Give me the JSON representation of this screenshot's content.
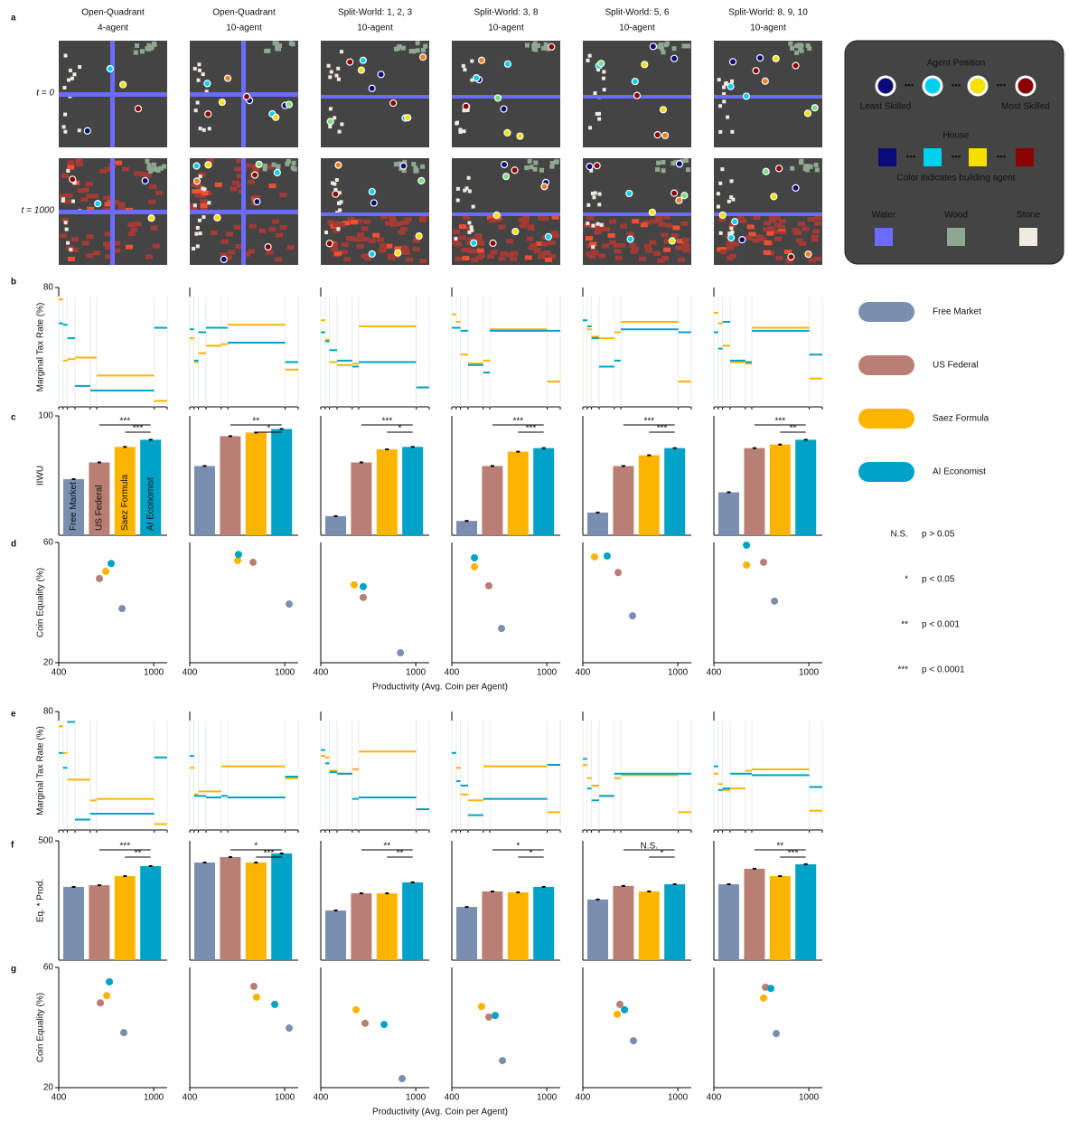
{
  "panel_letters": [
    "a",
    "b",
    "c",
    "d",
    "e",
    "f",
    "g"
  ],
  "column_titles": [
    [
      "Open-Quadrant",
      "4-agent"
    ],
    [
      "Open-Quadrant",
      "10-agent"
    ],
    [
      "Split-World: 1, 2, 3",
      "10-agent"
    ],
    [
      "Split-World: 3, 8",
      "10-agent"
    ],
    [
      "Split-World: 5, 6",
      "10-agent"
    ],
    [
      "Split-World: 8, 9, 10",
      "10-agent"
    ]
  ],
  "time_labels": [
    "t = 0",
    "t = 1000"
  ],
  "map_legend": {
    "agent_title": "Agent Position",
    "least": "Least Skilled",
    "most": "Most Skilled",
    "house_title": "House",
    "house_note": "Color indicates building agent",
    "resources": [
      "Water",
      "Wood",
      "Stone"
    ]
  },
  "legend": [
    {
      "name": "Free Market",
      "color": "#7a8fb0"
    },
    {
      "name": "US Federal",
      "color": "#b97f74"
    },
    {
      "name": "Saez Formula",
      "color": "#fbb400"
    },
    {
      "name": "AI Economist",
      "color": "#00a3c7"
    }
  ],
  "significance": [
    [
      "N.S.",
      "p > 0.05"
    ],
    [
      "*",
      "p < 0.05"
    ],
    [
      "**",
      "p < 0.001"
    ],
    [
      "***",
      "p < 0.0001"
    ]
  ],
  "xlabels": [
    "Productivity (Avg. Coin per Agent)",
    "Productivity (Avg. Coin per Agent)"
  ],
  "chart_data": [
    {
      "type": "step",
      "ylabel": "Marginal Tax Rate (%)",
      "ylim": [
        0,
        80
      ],
      "yticks": [
        80
      ],
      "xlim": [
        0,
        100
      ],
      "bracket_edges": [
        0,
        4,
        8,
        15,
        29,
        35,
        88,
        100
      ],
      "series": [
        {
          "color": "#fbb400",
          "values": [
            72,
            31,
            32,
            33,
            33,
            21,
            4
          ]
        },
        {
          "color": "#00a3c7",
          "values": [
            56,
            55,
            46,
            14,
            11,
            11,
            53
          ]
        }
      ]
    },
    {
      "type": "step",
      "ylim": [
        0,
        80
      ],
      "xlim": [
        0,
        100
      ],
      "bracket_edges": [
        0,
        4,
        8,
        15,
        29,
        35,
        88,
        100
      ],
      "series": [
        {
          "color": "#fbb400",
          "values": [
            46,
            30,
            36,
            41,
            42,
            55,
            25
          ]
        },
        {
          "color": "#00a3c7",
          "values": [
            52,
            31,
            50,
            53,
            53,
            43,
            30
          ]
        }
      ]
    },
    {
      "type": "step",
      "ylim": [
        0,
        80
      ],
      "xlim": [
        0,
        100
      ],
      "bracket_edges": [
        0,
        4,
        8,
        15,
        29,
        35,
        88,
        100
      ],
      "series": [
        {
          "color": "#fbb400",
          "values": [
            58,
            45,
            30,
            28,
            29,
            54,
            13
          ]
        },
        {
          "color": "#00a3c7",
          "values": [
            50,
            44,
            38,
            31,
            27,
            30,
            13
          ]
        }
      ]
    },
    {
      "type": "step",
      "ylim": [
        0,
        80
      ],
      "xlim": [
        0,
        100
      ],
      "bracket_edges": [
        0,
        4,
        8,
        15,
        29,
        35,
        88,
        100
      ],
      "series": [
        {
          "color": "#fbb400",
          "values": [
            62,
            57,
            35,
            29,
            31,
            52,
            17
          ]
        },
        {
          "color": "#00a3c7",
          "values": [
            53,
            53,
            51,
            28,
            23,
            51,
            51
          ]
        }
      ]
    },
    {
      "type": "step",
      "ylim": [
        0,
        80
      ],
      "xlim": [
        0,
        100
      ],
      "bracket_edges": [
        0,
        4,
        8,
        15,
        29,
        35,
        88,
        100
      ],
      "series": [
        {
          "color": "#fbb400",
          "values": [
            58,
            52,
            47,
            46,
            50,
            57,
            17
          ]
        },
        {
          "color": "#00a3c7",
          "values": [
            58,
            54,
            46,
            27,
            31,
            52,
            50
          ]
        }
      ]
    },
    {
      "type": "step",
      "ylim": [
        0,
        80
      ],
      "xlim": [
        0,
        100
      ],
      "bracket_edges": [
        0,
        4,
        8,
        15,
        29,
        35,
        88,
        100
      ],
      "series": [
        {
          "color": "#fbb400",
          "values": [
            63,
            56,
            41,
            30,
            29,
            53,
            19
          ]
        },
        {
          "color": "#00a3c7",
          "values": [
            50,
            39,
            57,
            31,
            30,
            51,
            35
          ]
        }
      ]
    },
    {
      "type": "bar",
      "ylabel": "IIWU",
      "ylim": [
        0,
        100
      ],
      "yticks": [
        100
      ],
      "categories": [
        "Free Market",
        "US Federal",
        "Saez Formula",
        "AI Economist"
      ],
      "values": [
        47,
        61,
        74,
        80
      ],
      "annotations": [
        "***",
        "***"
      ]
    },
    {
      "type": "bar",
      "ylim": [
        0,
        100
      ],
      "values": [
        58,
        83,
        86,
        89
      ],
      "annotations": [
        "**",
        "*"
      ]
    },
    {
      "type": "bar",
      "ylim": [
        0,
        100
      ],
      "values": [
        16,
        61,
        72,
        74
      ],
      "annotations": [
        "***",
        "*"
      ]
    },
    {
      "type": "bar",
      "ylim": [
        0,
        100
      ],
      "values": [
        12,
        58,
        70,
        73
      ],
      "annotations": [
        "***",
        "***"
      ]
    },
    {
      "type": "bar",
      "ylim": [
        0,
        100
      ],
      "values": [
        19,
        58,
        67,
        73
      ],
      "annotations": [
        "***",
        "***"
      ]
    },
    {
      "type": "bar",
      "ylim": [
        0,
        100
      ],
      "values": [
        36,
        73,
        76,
        80
      ],
      "annotations": [
        "***",
        "**"
      ]
    },
    {
      "type": "scatter",
      "ylabel": "Coin Equality (%)",
      "xlim": [
        400,
        1085
      ],
      "xticks": [
        400,
        1000
      ],
      "ylim": [
        20,
        60
      ],
      "yticks": [
        20,
        60
      ],
      "x": [
        800,
        657,
        697,
        731
      ],
      "y": [
        38,
        48,
        50.4,
        53
      ]
    },
    {
      "type": "scatter",
      "xlim": [
        400,
        1085
      ],
      "xticks": [
        400,
        1000
      ],
      "ylim": [
        20,
        60
      ],
      "x": [
        1028,
        800,
        703,
        708
      ],
      "y": [
        39.5,
        53.4,
        54,
        56
      ]
    },
    {
      "type": "scatter",
      "xlim": [
        400,
        1085
      ],
      "xticks": [
        400,
        1000
      ],
      "ylim": [
        20,
        60
      ],
      "x": [
        903,
        668,
        611,
        668
      ],
      "y": [
        23.3,
        41.7,
        45.9,
        45.3
      ]
    },
    {
      "type": "scatter",
      "xlim": [
        400,
        1085
      ],
      "xticks": [
        400,
        1000
      ],
      "ylim": [
        20,
        60
      ],
      "x": [
        714,
        634,
        543,
        543
      ],
      "y": [
        31.4,
        45.6,
        51.9,
        54.9
      ]
    },
    {
      "type": "scatter",
      "xlim": [
        400,
        1085
      ],
      "xticks": [
        400,
        1000
      ],
      "ylim": [
        20,
        60
      ],
      "x": [
        714,
        623,
        474,
        554
      ],
      "y": [
        35.6,
        50,
        55.2,
        55.5
      ]
    },
    {
      "type": "scatter",
      "xlim": [
        400,
        1085
      ],
      "xticks": [
        400,
        1000
      ],
      "ylim": [
        20,
        60
      ],
      "x": [
        783,
        714,
        606,
        606
      ],
      "y": [
        40.5,
        53.4,
        52.5,
        59.1
      ]
    },
    {
      "type": "step",
      "ylabel": "Marginal Tax Rate (%)",
      "ylim": [
        0,
        80
      ],
      "yticks": [
        80
      ],
      "xlim": [
        0,
        100
      ],
      "bracket_edges": [
        0,
        4,
        8,
        15,
        29,
        35,
        88,
        100
      ],
      "series": [
        {
          "color": "#fbb400",
          "values": [
            70,
            52,
            34,
            34,
            20,
            21,
            4
          ]
        },
        {
          "color": "#00a3c7",
          "values": [
            52,
            42,
            73,
            7,
            11,
            11,
            49
          ]
        }
      ]
    },
    {
      "type": "step",
      "ylim": [
        0,
        80
      ],
      "xlim": [
        0,
        100
      ],
      "bracket_edges": [
        0,
        4,
        8,
        15,
        29,
        35,
        88,
        100
      ],
      "series": [
        {
          "color": "#fbb400",
          "values": [
            42,
            24,
            26,
            26,
            43,
            43,
            35
          ]
        },
        {
          "color": "#00a3c7",
          "values": [
            50,
            23,
            23,
            22,
            23,
            22,
            36
          ]
        }
      ]
    },
    {
      "type": "step",
      "ylim": [
        0,
        80
      ],
      "xlim": [
        0,
        100
      ],
      "bracket_edges": [
        0,
        4,
        8,
        15,
        29,
        35,
        88,
        100
      ],
      "series": [
        {
          "color": "#fbb400",
          "values": [
            50,
            49,
            40,
            38,
            41,
            53,
            14
          ]
        },
        {
          "color": "#00a3c7",
          "values": [
            54,
            45,
            39,
            38,
            21,
            22,
            14
          ]
        }
      ]
    },
    {
      "type": "step",
      "ylim": [
        0,
        80
      ],
      "xlim": [
        0,
        100
      ],
      "bracket_edges": [
        0,
        4,
        8,
        15,
        29,
        35,
        88,
        100
      ],
      "series": [
        {
          "color": "#fbb400",
          "values": [
            52,
            42,
            24,
            20,
            43,
            43,
            12
          ]
        },
        {
          "color": "#00a3c7",
          "values": [
            52,
            33,
            30,
            10,
            21,
            21,
            44
          ]
        }
      ]
    },
    {
      "type": "step",
      "ylim": [
        0,
        80
      ],
      "xlim": [
        0,
        100
      ],
      "bracket_edges": [
        0,
        4,
        8,
        15,
        29,
        35,
        88,
        100
      ],
      "series": [
        {
          "color": "#fbb400",
          "values": [
            44,
            35,
            30,
            23,
            35,
            37,
            12
          ]
        },
        {
          "color": "#00a3c7",
          "values": [
            48,
            28,
            20,
            23,
            38,
            38,
            38
          ]
        }
      ]
    },
    {
      "type": "step",
      "ylim": [
        0,
        80
      ],
      "xlim": [
        0,
        100
      ],
      "bracket_edges": [
        0,
        4,
        8,
        15,
        29,
        35,
        88,
        100
      ],
      "series": [
        {
          "color": "#fbb400",
          "values": [
            38,
            31,
            27,
            28,
            40,
            41,
            13
          ]
        },
        {
          "color": "#00a3c7",
          "values": [
            43,
            27,
            28,
            38,
            38,
            37,
            29
          ]
        }
      ]
    },
    {
      "type": "bar",
      "ylabel": "Eq. * Prod.",
      "ylim": [
        0,
        500
      ],
      "yticks": [
        500
      ],
      "values": [
        307,
        314,
        352,
        394
      ],
      "annotations": [
        "***",
        "**"
      ]
    },
    {
      "type": "bar",
      "ylim": [
        0,
        500
      ],
      "values": [
        409,
        432,
        409,
        447
      ],
      "annotations": [
        "*",
        "***"
      ]
    },
    {
      "type": "bar",
      "ylim": [
        0,
        500
      ],
      "values": [
        208,
        280,
        280,
        326
      ],
      "annotations": [
        "**",
        "**"
      ]
    },
    {
      "type": "bar",
      "ylim": [
        0,
        500
      ],
      "values": [
        223,
        288,
        284,
        307
      ],
      "annotations": [
        "*",
        "*"
      ]
    },
    {
      "type": "bar",
      "ylim": [
        0,
        500
      ],
      "values": [
        254,
        311,
        288,
        318
      ],
      "annotations": [
        "N.S.",
        "*"
      ]
    },
    {
      "type": "bar",
      "ylim": [
        0,
        500
      ],
      "values": [
        318,
        383,
        352,
        402
      ],
      "annotations": [
        "**",
        "***"
      ]
    },
    {
      "type": "scatter",
      "ylabel": "Coin Equality (%)",
      "xlim": [
        400,
        1085
      ],
      "xticks": [
        400,
        1000
      ],
      "ylim": [
        20,
        60
      ],
      "yticks": [
        20,
        60
      ],
      "x": [
        811,
        663,
        703,
        720
      ],
      "y": [
        38.3,
        48.2,
        50.6,
        55.2
      ]
    },
    {
      "type": "scatter",
      "xlim": [
        400,
        1085
      ],
      "xticks": [
        400,
        1000
      ],
      "ylim": [
        20,
        60
      ],
      "x": [
        1028,
        805,
        822,
        937
      ],
      "y": [
        39.8,
        53.7,
        50.1,
        47.7
      ]
    },
    {
      "type": "scatter",
      "xlim": [
        400,
        1085
      ],
      "xticks": [
        400,
        1000
      ],
      "ylim": [
        20,
        60
      ],
      "x": [
        914,
        680,
        623,
        800
      ],
      "y": [
        23,
        41.4,
        45.9,
        41
      ]
    },
    {
      "type": "scatter",
      "xlim": [
        400,
        1085
      ],
      "xticks": [
        400,
        1000
      ],
      "ylim": [
        20,
        60
      ],
      "x": [
        720,
        634,
        588,
        674
      ],
      "y": [
        29,
        43.5,
        47,
        44
      ]
    },
    {
      "type": "scatter",
      "xlim": [
        400,
        1085
      ],
      "xticks": [
        400,
        1000
      ],
      "ylim": [
        20,
        60
      ],
      "x": [
        720,
        634,
        617,
        663
      ],
      "y": [
        35.6,
        47.7,
        44.4,
        45.9
      ]
    },
    {
      "type": "scatter",
      "xlim": [
        400,
        1085
      ],
      "xticks": [
        400,
        1000
      ],
      "ylim": [
        20,
        60
      ],
      "x": [
        794,
        726,
        714,
        760
      ],
      "y": [
        38,
        53.4,
        49.8,
        53
      ]
    }
  ]
}
